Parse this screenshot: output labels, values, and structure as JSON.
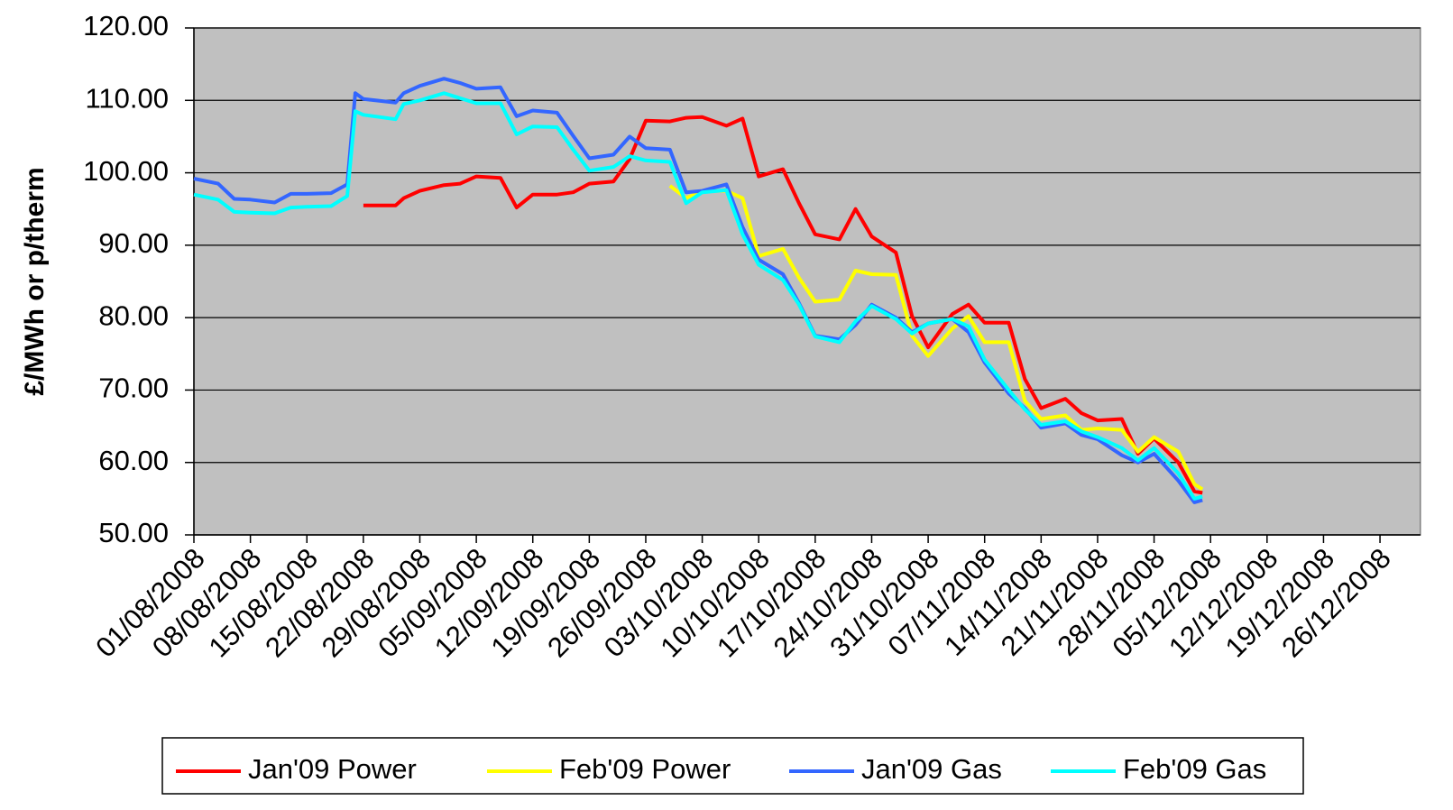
{
  "chart_data": {
    "type": "line",
    "ylabel": "£/MWh or p/therm",
    "x": [
      "01/08/2008",
      "04/08/2008",
      "06/08/2008",
      "08/08/2008",
      "11/08/2008",
      "13/08/2008",
      "15/08/2008",
      "18/08/2008",
      "20/08/2008",
      "21/08/2008",
      "22/08/2008",
      "26/08/2008",
      "27/08/2008",
      "29/08/2008",
      "01/09/2008",
      "03/09/2008",
      "05/09/2008",
      "08/09/2008",
      "10/09/2008",
      "12/09/2008",
      "15/09/2008",
      "17/09/2008",
      "19/09/2008",
      "22/09/2008",
      "24/09/2008",
      "26/09/2008",
      "29/09/2008",
      "01/10/2008",
      "03/10/2008",
      "06/10/2008",
      "08/10/2008",
      "10/10/2008",
      "13/10/2008",
      "15/10/2008",
      "17/10/2008",
      "20/10/2008",
      "22/10/2008",
      "24/10/2008",
      "27/10/2008",
      "29/10/2008",
      "31/10/2008",
      "03/11/2008",
      "05/11/2008",
      "07/11/2008",
      "10/11/2008",
      "12/11/2008",
      "14/11/2008",
      "17/11/2008",
      "19/11/2008",
      "21/11/2008",
      "24/11/2008",
      "26/11/2008",
      "28/11/2008",
      "01/12/2008",
      "03/12/2008",
      "04/12/2008"
    ],
    "series": [
      {
        "name": "Jan'09 Power",
        "color": "#ff0000",
        "values": [
          null,
          null,
          null,
          null,
          null,
          null,
          null,
          null,
          null,
          null,
          95.5,
          95.5,
          96.5,
          97.5,
          98.3,
          98.5,
          99.5,
          99.3,
          95.2,
          97,
          97,
          97.3,
          98.5,
          98.8,
          101.9,
          107.2,
          107.1,
          107.6,
          107.7,
          106.5,
          107.5,
          99.5,
          100.5,
          95.8,
          91.5,
          90.8,
          95,
          91.2,
          89,
          80.2,
          75.9,
          80.5,
          81.8,
          79.3,
          79.3,
          71.5,
          67.5,
          68.8,
          66.8,
          65.8,
          66,
          61.2,
          63.3,
          60,
          56,
          55.8
        ]
      },
      {
        "name": "Feb'09 Power",
        "color": "#ffff00",
        "values": [
          null,
          null,
          null,
          null,
          null,
          null,
          null,
          null,
          null,
          null,
          null,
          null,
          null,
          null,
          null,
          null,
          null,
          null,
          null,
          null,
          null,
          null,
          null,
          null,
          null,
          null,
          98.2,
          96.5,
          97.5,
          97.5,
          96.5,
          88.5,
          89.5,
          85.5,
          82.2,
          82.5,
          86.5,
          86,
          85.9,
          77.5,
          74.7,
          78.5,
          80.2,
          76.6,
          76.6,
          68.5,
          66,
          66.5,
          64.5,
          64.7,
          64.5,
          61.5,
          63.5,
          61.5,
          57,
          56.3
        ]
      },
      {
        "name": "Jan'09 Gas",
        "color": "#3366ff",
        "values": [
          99.2,
          98.5,
          96.4,
          96.3,
          95.9,
          97.1,
          97.1,
          97.2,
          98.4,
          111,
          110.2,
          109.7,
          111,
          112,
          113,
          112.4,
          111.6,
          111.8,
          107.8,
          108.6,
          108.3,
          105.1,
          102,
          102.5,
          105,
          103.4,
          103.2,
          97.3,
          97.5,
          98.4,
          92.5,
          88,
          86,
          82,
          77.5,
          77,
          79,
          81.8,
          80,
          78,
          79.2,
          79.8,
          78,
          73.8,
          69.5,
          67.5,
          64.8,
          65.4,
          63.8,
          63.2,
          61,
          60,
          61.2,
          57.5,
          54.5,
          54.8
        ]
      },
      {
        "name": "Feb'09 Gas",
        "color": "#00ffff",
        "values": [
          97,
          96.3,
          94.6,
          94.5,
          94.4,
          95.2,
          95.3,
          95.4,
          96.8,
          108.5,
          108,
          107.4,
          109.5,
          110,
          111,
          110.3,
          109.6,
          109.6,
          105.3,
          106.4,
          106.3,
          103.2,
          100.3,
          100.8,
          102.3,
          101.7,
          101.5,
          95.8,
          97.3,
          97.6,
          91.5,
          87.3,
          85.2,
          81.8,
          77.4,
          76.6,
          79.5,
          81.6,
          79.8,
          77.8,
          79.2,
          79.8,
          78.8,
          74.2,
          70,
          67.3,
          65.2,
          65.7,
          64.3,
          63.5,
          62,
          60.3,
          62,
          58.5,
          55,
          55.3
        ]
      }
    ],
    "xlim": [
      "01/08/2008",
      "31/12/2008"
    ],
    "xticks": [
      "01/08/2008",
      "08/08/2008",
      "15/08/2008",
      "22/08/2008",
      "29/08/2008",
      "05/09/2008",
      "12/09/2008",
      "19/09/2008",
      "26/09/2008",
      "03/10/2008",
      "10/10/2008",
      "17/10/2008",
      "24/10/2008",
      "31/10/2008",
      "07/11/2008",
      "14/11/2008",
      "21/11/2008",
      "28/11/2008",
      "05/12/2008",
      "12/12/2008",
      "19/12/2008",
      "26/12/2008"
    ],
    "ylim": [
      50,
      120
    ],
    "yticks": [
      {
        "value": 50,
        "label": "50.00"
      },
      {
        "value": 60,
        "label": "60.00"
      },
      {
        "value": 70,
        "label": "70.00"
      },
      {
        "value": 80,
        "label": "80.00"
      },
      {
        "value": 90,
        "label": "90.00"
      },
      {
        "value": 100,
        "label": "100.00"
      },
      {
        "value": 110,
        "label": "110.00"
      },
      {
        "value": 120,
        "label": "120.00"
      }
    ],
    "grid": true,
    "legend": "bottom"
  }
}
